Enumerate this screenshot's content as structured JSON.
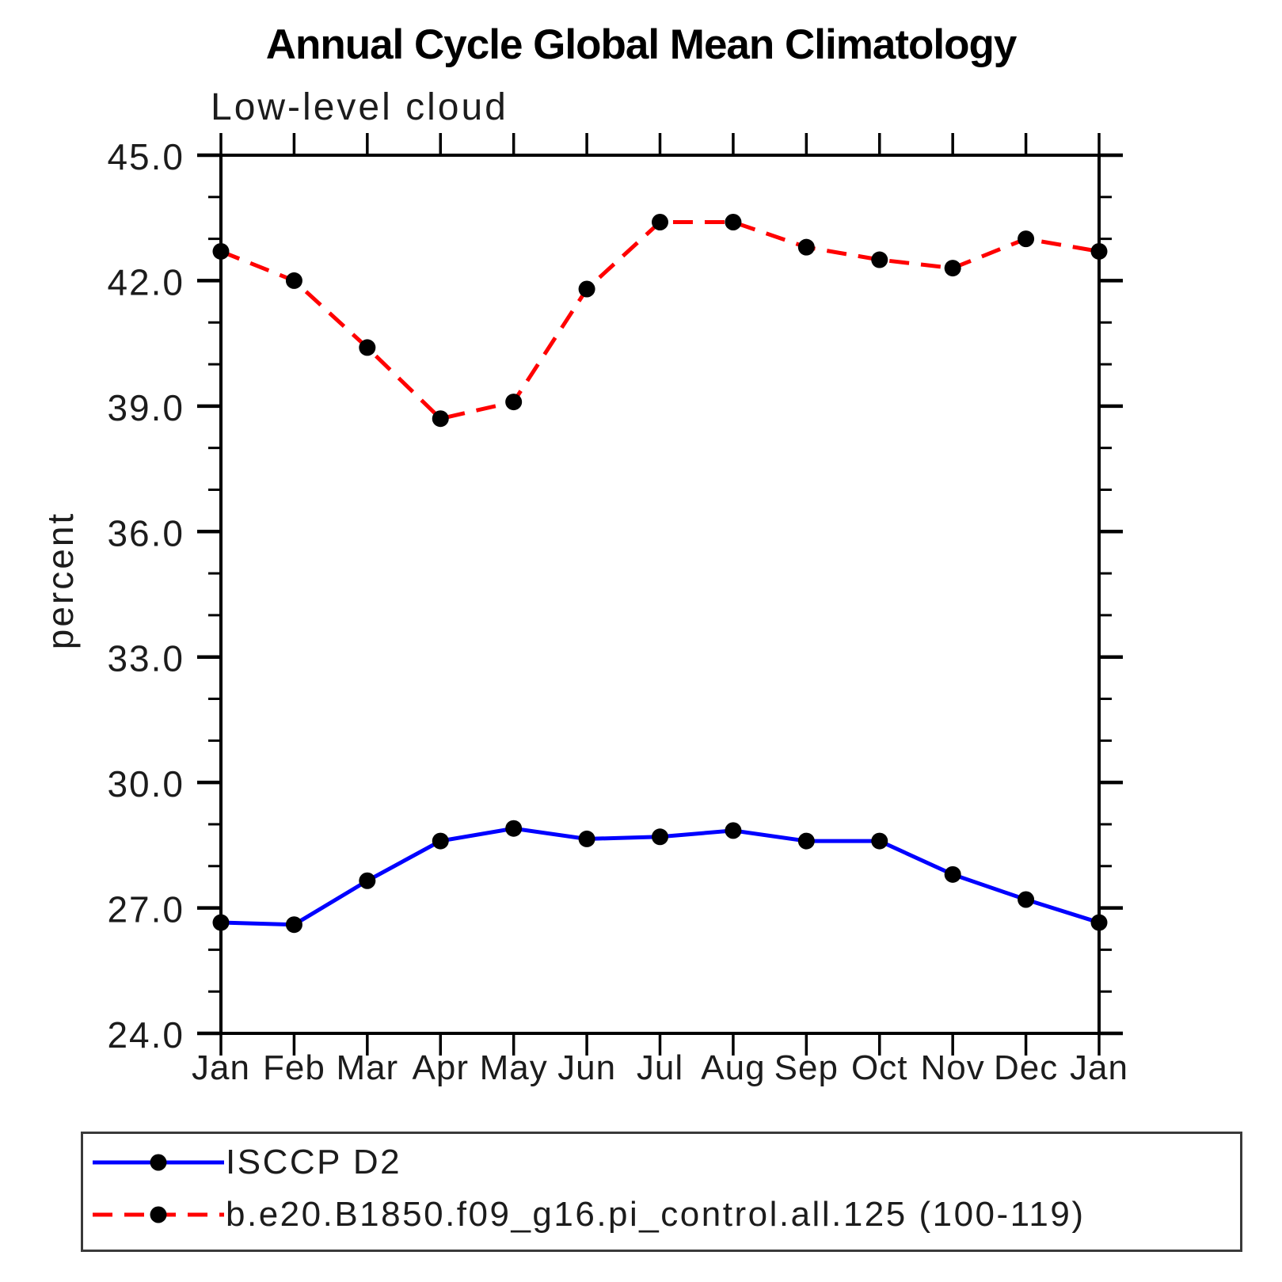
{
  "chart_data": {
    "type": "line",
    "title": "Annual Cycle Global Mean Climatology",
    "subtitle": "Low-level cloud",
    "ylabel": "percent",
    "xlabel": "",
    "categories": [
      "Jan",
      "Feb",
      "Mar",
      "Apr",
      "May",
      "Jun",
      "Jul",
      "Aug",
      "Sep",
      "Oct",
      "Nov",
      "Dec",
      "Jan"
    ],
    "ylim": [
      24.0,
      45.0
    ],
    "ytick_major_values": [
      24,
      27,
      30,
      33,
      36,
      39,
      42,
      45
    ],
    "ytick_major_labels": [
      "24.0",
      "27.0",
      "30.0",
      "33.0",
      "36.0",
      "39.0",
      "42.0",
      "45.0"
    ],
    "ytick_minor_step": 1.0,
    "grid": false,
    "legend_position": "bottom",
    "frame_color": "#000000",
    "series": [
      {
        "name": "ISCCP D2",
        "color": "#0000ff",
        "line_style": "solid",
        "marker": "circle",
        "marker_color": "#000000",
        "values": [
          26.65,
          26.6,
          27.65,
          28.6,
          28.9,
          28.65,
          28.7,
          28.85,
          28.6,
          28.6,
          27.8,
          27.2,
          26.65
        ]
      },
      {
        "name": "b.e20.B1850.f09_g16.pi_control.all.125 (100-119)",
        "color": "#ff0000",
        "line_style": "dashed",
        "marker": "circle",
        "marker_color": "#000000",
        "values": [
          42.7,
          42.0,
          40.4,
          38.7,
          39.1,
          41.8,
          43.4,
          43.4,
          42.8,
          42.5,
          42.3,
          43.0,
          42.7
        ]
      }
    ]
  }
}
